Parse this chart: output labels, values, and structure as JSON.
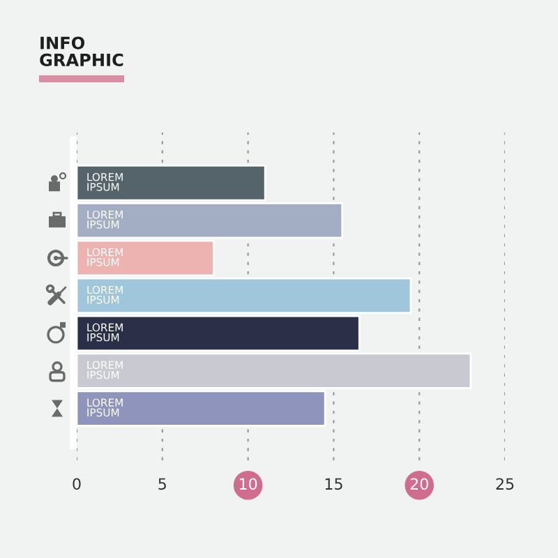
{
  "chart_data": {
    "type": "bar",
    "orientation": "horizontal",
    "title": "INFO\nGRAPHIC",
    "categories": [
      "LOREM\nIPSUM",
      "LOREM\nIPSUM",
      "LOREM\nIPSUM",
      "LOREM\nIPSUM",
      "LOREM\nIPSUM",
      "LOREM\nIPSUM",
      "LOREM\nIPSUM"
    ],
    "values": [
      11,
      15.5,
      8,
      19.5,
      16.5,
      23,
      14.5
    ],
    "colors": [
      "#55646a",
      "#a3adc4",
      "#ecb3b1",
      "#9fc6da",
      "#2b3048",
      "#c9cad1",
      "#8e94bc"
    ],
    "xlim": [
      0,
      25
    ],
    "xticks": [
      0,
      5,
      10,
      15,
      20,
      25
    ],
    "grid": "x"
  }
}
